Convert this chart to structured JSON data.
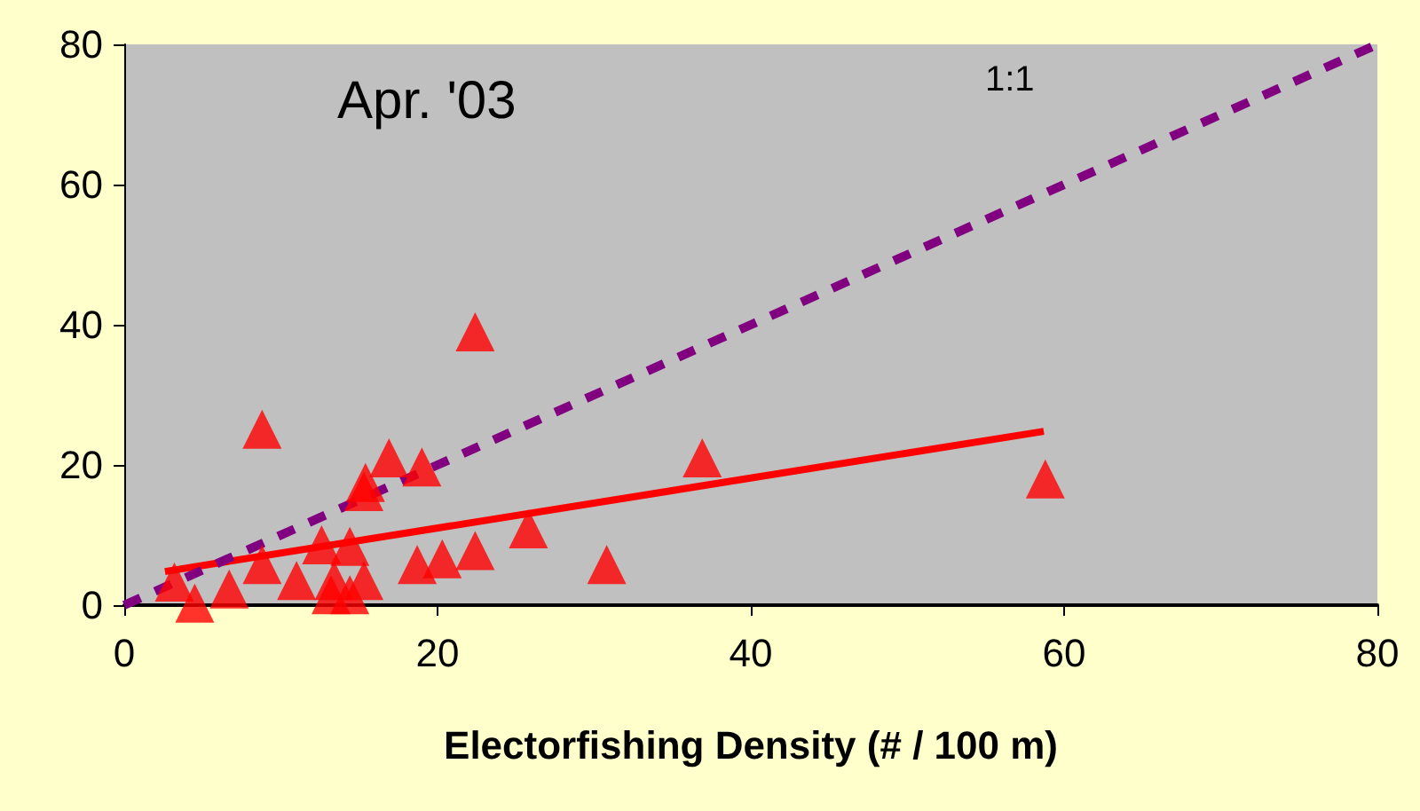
{
  "chart_data": {
    "type": "scatter",
    "xlabel": "Electorfishing Density (# / 100 m)",
    "annotations": [
      "Apr. '03",
      "1:1"
    ],
    "xlim": [
      0,
      80
    ],
    "xticks": [
      0,
      20,
      40,
      60,
      80
    ],
    "ylim": [
      0,
      80
    ],
    "yticks": [
      0,
      20,
      40,
      60,
      80
    ],
    "grid": false,
    "series": [
      {
        "color": "#ff0000",
        "marker": "triangle",
        "x": [
          8.8,
          22.4,
          16.9,
          19.0,
          15.4,
          15.3,
          8.8,
          3.2,
          4.5,
          6.7,
          11,
          12.6,
          14.4,
          13.4,
          13.2,
          15.3,
          14.4,
          18.7,
          20.3,
          22.4,
          25.8,
          30.8,
          36.9,
          58.8
        ],
        "values": [
          25.1,
          39,
          21,
          19.7,
          17.5,
          16.2,
          5.8,
          3.3,
          0.3,
          2.3,
          3.5,
          8.6,
          8.4,
          3.5,
          1.5,
          3.5,
          1.5,
          5.8,
          6.6,
          7.8,
          10.9,
          5.8,
          21,
          18
        ]
      },
      {
        "type": "line",
        "color": "#ff0000",
        "line_style": "solid",
        "marker": "none",
        "x": [
          2.6,
          58.7
        ],
        "values": [
          4.8,
          24.8
        ]
      },
      {
        "type": "line",
        "color": "#800080",
        "line_style": "dashed",
        "marker": "none",
        "x": [
          0,
          20,
          40,
          60,
          80
        ],
        "values": [
          0,
          20,
          40,
          60,
          80
        ]
      }
    ]
  }
}
